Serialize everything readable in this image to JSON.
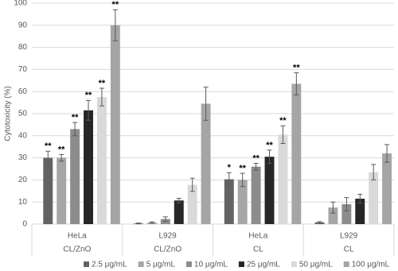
{
  "chart_data": {
    "type": "bar",
    "y_label": "Cytotoxicity (%)",
    "categories": [
      "HeLa",
      "L929",
      "HeLa",
      "L929"
    ],
    "groups": [
      "CL/ZnO",
      "CL/ZnO",
      "CL",
      "CL"
    ],
    "ylim": [
      0,
      100
    ],
    "yticks": [
      0,
      10,
      20,
      30,
      40,
      50,
      60,
      70,
      80,
      90,
      100
    ],
    "grid": true,
    "legend": "bottom",
    "series": [
      {
        "name": "2.5 μg/mL",
        "color": "#636363",
        "values": [
          30,
          0.3,
          20.3,
          0.8
        ],
        "errors": [
          3,
          0.2,
          3,
          0.3
        ],
        "significance": [
          "**",
          null,
          "*",
          null
        ]
      },
      {
        "name": "5 μg/mL",
        "color": "#a6a6a6",
        "values": [
          30,
          0.7,
          20,
          7.5
        ],
        "errors": [
          1.5,
          0.3,
          3,
          2.5
        ],
        "significance": [
          "**",
          null,
          "**",
          null
        ]
      },
      {
        "name": "10 μg/mL",
        "color": "#8c8c8c",
        "values": [
          43,
          2.3,
          26,
          9
        ],
        "errors": [
          3,
          1,
          1.5,
          3
        ],
        "significance": [
          "**",
          null,
          "**",
          null
        ]
      },
      {
        "name": "25 μg/mL",
        "color": "#262626",
        "values": [
          51.5,
          10.7,
          30.5,
          11.5
        ],
        "errors": [
          4.5,
          1,
          3,
          2
        ],
        "significance": [
          "**",
          null,
          "**",
          null
        ]
      },
      {
        "name": "50 μg/mL",
        "color": "#d9d9d9",
        "values": [
          57.5,
          17.8,
          40.5,
          23.5
        ],
        "errors": [
          4,
          3,
          4,
          3.5
        ],
        "significance": [
          "**",
          null,
          "**",
          null
        ]
      },
      {
        "name": "100 μg/mL",
        "color": "#a5a5a5",
        "values": [
          90,
          54.5,
          63.5,
          32
        ],
        "errors": [
          7,
          7.5,
          5,
          4
        ],
        "significance": [
          "**",
          null,
          "**",
          null
        ]
      }
    ]
  }
}
